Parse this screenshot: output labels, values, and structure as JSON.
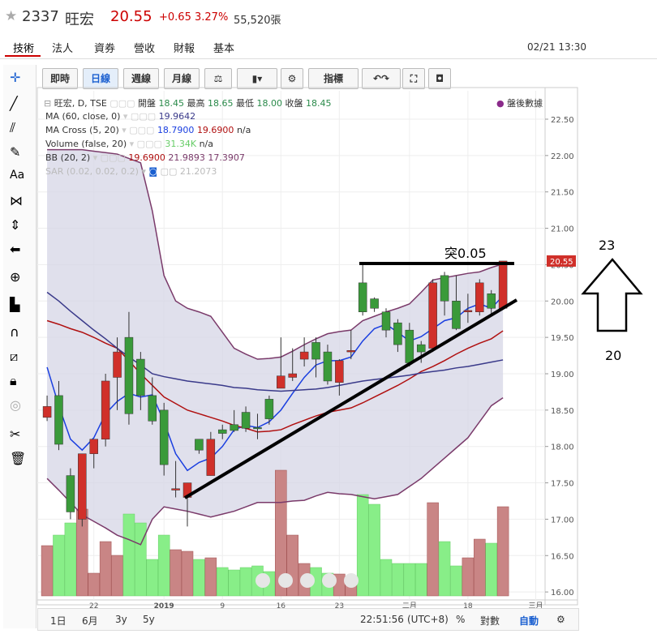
{
  "header": {
    "code": "2337",
    "name": "旺宏",
    "price": "20.55",
    "change": "+0.65",
    "pct": "3.27%",
    "volume": "55,520張"
  },
  "tabs": [
    "技術",
    "法人",
    "資券",
    "營收",
    "財報",
    "基本"
  ],
  "datetime": "02/21 13:30",
  "toolbar": [
    "即時",
    "日線",
    "週線",
    "月線",
    "指標"
  ],
  "tool_text": "Aa",
  "legend": {
    "main": [
      "旺宏, D, TSE",
      "開盤",
      "18.45",
      "最高",
      "18.65",
      "最低",
      "18.00",
      "收盤",
      "18.45"
    ],
    "ma": [
      "MA (60, close, 0)",
      "19.9642"
    ],
    "cross": [
      "MA Cross (5, 20)",
      "18.7900",
      "19.6900",
      "n/a"
    ],
    "volume": [
      "Volume (false, 20)",
      "31.34K",
      "n/a"
    ],
    "bb": [
      "BB (20, 2)",
      "19.6900",
      "21.9893",
      "17.3907"
    ],
    "sar": [
      "SAR (0.02, 0.02, 0.2)",
      "21.2073"
    ],
    "after_hours": "盤後數據"
  },
  "bottom": {
    "ranges": [
      "1日",
      "6月",
      "3y",
      "5y"
    ],
    "time": "22:51:56",
    "tz": "(UTC+8)",
    "pct": "%",
    "log": "對數",
    "auto": "自動"
  },
  "chart_data": {
    "type": "candlestick",
    "open": [
      18.4,
      18.7,
      17.6,
      17.0,
      17.9,
      18.1,
      18.95,
      19.5,
      19.2,
      18.7,
      18.5,
      17.4,
      17.3,
      18.1,
      17.6,
      18.23,
      18.3,
      18.47,
      18.26,
      18.65,
      18.8,
      18.95,
      19.2,
      19.43,
      19.3,
      18.88,
      19.3,
      20.25,
      20.03,
      19.85,
      19.7,
      19.6,
      19.4,
      19.35,
      20.35,
      20.0,
      19.85,
      19.85,
      20.1,
      19.9
    ],
    "high": [
      18.7,
      18.9,
      17.7,
      17.9,
      18.1,
      19.0,
      19.5,
      19.85,
      19.3,
      18.95,
      18.6,
      17.8,
      17.5,
      18.1,
      18.2,
      18.3,
      18.5,
      18.55,
      18.45,
      18.7,
      19.5,
      19.35,
      19.5,
      19.5,
      19.4,
      19.2,
      19.6,
      20.5,
      20.05,
      19.9,
      19.75,
      19.7,
      19.45,
      20.3,
      20.4,
      20.35,
      20.1,
      20.3,
      20.15,
      20.55
    ],
    "low": [
      18.35,
      17.95,
      17.0,
      16.9,
      17.7,
      18.0,
      18.5,
      18.3,
      18.5,
      18.3,
      17.6,
      17.3,
      16.9,
      17.9,
      17.6,
      18.1,
      18.2,
      18.2,
      18.1,
      18.3,
      18.8,
      18.9,
      19.1,
      18.95,
      18.85,
      18.7,
      19.2,
      19.8,
      19.85,
      19.5,
      19.3,
      19.1,
      19.15,
      19.3,
      19.8,
      19.6,
      19.7,
      19.8,
      19.8,
      19.9
    ],
    "close": [
      18.55,
      18.03,
      17.1,
      17.9,
      18.1,
      18.9,
      19.3,
      18.45,
      18.7,
      18.35,
      17.75,
      17.42,
      17.5,
      17.95,
      18.1,
      18.18,
      18.22,
      18.25,
      18.25,
      18.38,
      18.97,
      19.0,
      19.3,
      19.2,
      18.9,
      19.18,
      19.32,
      19.85,
      19.9,
      19.6,
      19.4,
      19.15,
      19.3,
      20.25,
      20.0,
      19.62,
      19.87,
      20.25,
      19.9,
      20.55
    ],
    "volume": [
      62,
      75,
      90,
      107,
      28,
      67,
      50,
      101,
      90,
      45,
      75,
      57,
      55,
      45,
      47,
      35,
      32,
      35,
      37,
      30,
      155,
      75,
      40,
      35,
      28,
      27,
      23,
      125,
      113,
      45,
      40,
      40,
      40,
      115,
      67,
      37,
      47,
      70,
      65,
      110
    ],
    "vlim": [
      0,
      160
    ],
    "lines": [
      {
        "color": "#1a3fe0",
        "values": [
          19.09,
          18.56,
          18.1,
          17.95,
          18.12,
          18.45,
          18.62,
          18.73,
          18.68,
          18.71,
          18.34,
          17.9,
          17.67,
          17.78,
          17.84,
          18.0,
          18.23,
          18.29,
          18.26,
          18.34,
          18.5,
          18.73,
          18.95,
          19.12,
          19.18,
          19.18,
          19.23,
          19.45,
          19.62,
          19.68,
          19.57,
          19.45,
          19.51,
          19.62,
          19.73,
          19.77,
          19.9,
          19.96,
          19.9,
          20.07
        ]
      },
      {
        "color": "#b01010",
        "values": [
          19.73,
          19.68,
          19.62,
          19.57,
          19.5,
          19.42,
          19.35,
          19.18,
          19.0,
          18.84,
          18.68,
          18.59,
          18.5,
          18.45,
          18.4,
          18.35,
          18.29,
          18.25,
          18.2,
          18.21,
          18.23,
          18.3,
          18.36,
          18.42,
          18.47,
          18.5,
          18.53,
          18.6,
          18.68,
          18.76,
          18.84,
          18.93,
          19.03,
          19.1,
          19.18,
          19.27,
          19.35,
          19.42,
          19.48,
          19.59
        ]
      },
      {
        "color": "#3a3a8a",
        "values": [
          20.12,
          20.0,
          19.86,
          19.73,
          19.6,
          19.48,
          19.35,
          19.23,
          19.12,
          19.0,
          18.96,
          18.93,
          18.9,
          18.88,
          18.86,
          18.84,
          18.81,
          18.8,
          18.78,
          18.77,
          18.76,
          18.77,
          18.78,
          18.79,
          18.81,
          18.84,
          18.87,
          18.9,
          18.92,
          18.94,
          18.96,
          18.98,
          19.01,
          19.03,
          19.05,
          19.08,
          19.1,
          19.13,
          19.16,
          19.19
        ]
      },
      {
        "color": "#7a3a6a",
        "values": [
          22.08,
          22.08,
          22.08,
          22.08,
          22.06,
          22.04,
          22.02,
          21.96,
          21.9,
          21.24,
          20.35,
          20.0,
          19.9,
          19.85,
          19.79,
          19.57,
          19.35,
          19.27,
          19.2,
          19.21,
          19.23,
          19.31,
          19.4,
          19.48,
          19.55,
          19.58,
          19.6,
          19.73,
          19.79,
          19.85,
          19.9,
          19.96,
          20.12,
          20.29,
          20.32,
          20.35,
          20.38,
          20.4,
          20.46,
          20.51
        ]
      },
      {
        "color": "#7a3a6a",
        "values": [
          17.56,
          17.4,
          17.23,
          17.06,
          16.97,
          16.88,
          16.78,
          16.72,
          16.65,
          17.0,
          17.17,
          17.14,
          17.11,
          17.07,
          17.03,
          17.07,
          17.11,
          17.17,
          17.23,
          17.23,
          17.23,
          17.25,
          17.26,
          17.32,
          17.37,
          17.35,
          17.34,
          17.31,
          17.28,
          17.31,
          17.34,
          17.45,
          17.56,
          17.7,
          17.84,
          17.98,
          18.12,
          18.34,
          18.56,
          18.67
        ]
      }
    ],
    "up_color": "#d0302a",
    "down_color": "#3a9a3a",
    "vol_up_color": "#c98585",
    "vol_down_color": "#88ee88",
    "band_color": "#d6d6e6",
    "xlim": [
      -0.56,
      42.6
    ],
    "xticks": [
      {
        "value": 4,
        "label": "22"
      },
      {
        "value": 10,
        "label": "2019"
      },
      {
        "value": 15,
        "label": "9"
      },
      {
        "value": 20,
        "label": "16"
      },
      {
        "value": 25,
        "label": "23"
      },
      {
        "value": 31,
        "label": "二月"
      },
      {
        "value": 36,
        "label": "18"
      },
      {
        "value": 41.8,
        "label": "三月"
      }
    ],
    "ylim": [
      15.89,
      22.89
    ],
    "yticks": [
      {
        "value": 16,
        "label": "16.00"
      },
      {
        "value": 16.5,
        "label": "16.50"
      },
      {
        "value": 17,
        "label": "17.00"
      },
      {
        "value": 17.5,
        "label": "17.50"
      },
      {
        "value": 18,
        "label": "18.00"
      },
      {
        "value": 18.5,
        "label": "18.50"
      },
      {
        "value": 19,
        "label": "19.00"
      },
      {
        "value": 19.5,
        "label": "19.50"
      },
      {
        "value": 20,
        "label": "20.00"
      },
      {
        "value": 20.5,
        "label": "20.50"
      },
      {
        "value": 21,
        "label": "21.00"
      },
      {
        "value": 21.5,
        "label": "21.50"
      },
      {
        "value": 22,
        "label": "22.00"
      },
      {
        "value": 22.5,
        "label": "22.50"
      }
    ],
    "grid": true,
    "annotations": [
      "突0.05",
      "23",
      "20"
    ]
  }
}
